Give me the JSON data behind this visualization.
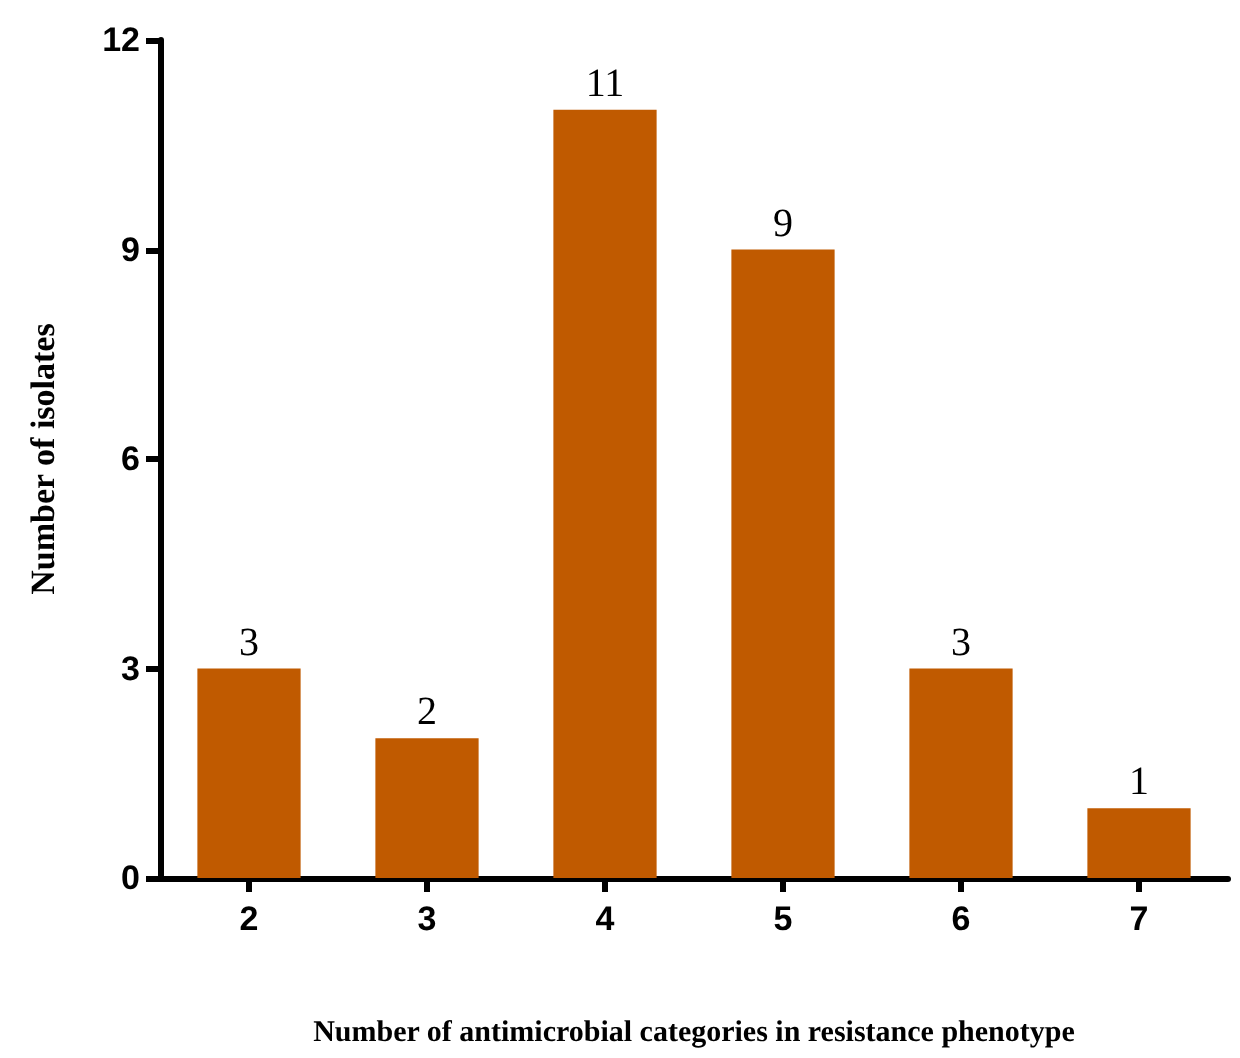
{
  "chart_data": {
    "type": "bar",
    "xlabel": "Number of antimicrobial categories in resistance phenotype",
    "ylabel": "Number of isolates",
    "categories": [
      "2",
      "3",
      "4",
      "5",
      "6",
      "7"
    ],
    "values": [
      3,
      2,
      11,
      9,
      3,
      1
    ],
    "color": "#c05a00",
    "ylim": [
      0,
      12
    ],
    "yticks": [
      0,
      3,
      6,
      9,
      12
    ],
    "grid": false,
    "data_labels": true
  }
}
